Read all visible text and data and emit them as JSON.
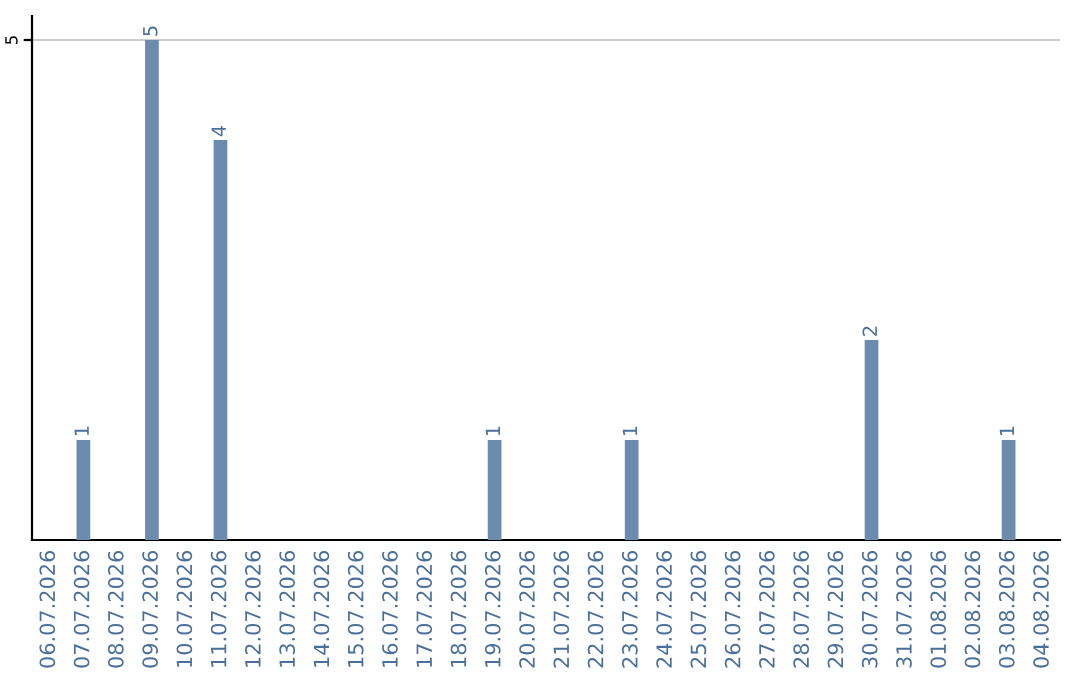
{
  "chart_data": {
    "type": "bar",
    "categories": [
      "06.07.2026",
      "07.07.2026",
      "08.07.2026",
      "09.07.2026",
      "10.07.2026",
      "11.07.2026",
      "12.07.2026",
      "13.07.2026",
      "14.07.2026",
      "15.07.2026",
      "16.07.2026",
      "17.07.2026",
      "18.07.2026",
      "19.07.2026",
      "20.07.2026",
      "21.07.2026",
      "22.07.2026",
      "23.07.2026",
      "24.07.2026",
      "25.07.2026",
      "26.07.2026",
      "27.07.2026",
      "28.07.2026",
      "29.07.2026",
      "30.07.2026",
      "31.07.2026",
      "01.08.2026",
      "02.08.2026",
      "03.08.2026",
      "04.08.2026"
    ],
    "values": [
      0,
      1,
      0,
      5,
      0,
      4,
      0,
      0,
      0,
      0,
      0,
      0,
      0,
      1,
      0,
      0,
      0,
      1,
      0,
      0,
      0,
      0,
      0,
      0,
      2,
      0,
      0,
      0,
      1,
      0
    ],
    "value_labels": [
      null,
      "1",
      null,
      "5",
      null,
      "4",
      null,
      null,
      null,
      null,
      null,
      null,
      null,
      "1",
      null,
      null,
      null,
      "1",
      null,
      null,
      null,
      null,
      null,
      null,
      "2",
      null,
      null,
      null,
      "1",
      null
    ],
    "color": "#6b8cae",
    "ylim": [
      0,
      5.24
    ],
    "yticks": [
      5
    ],
    "grid": "y"
  }
}
